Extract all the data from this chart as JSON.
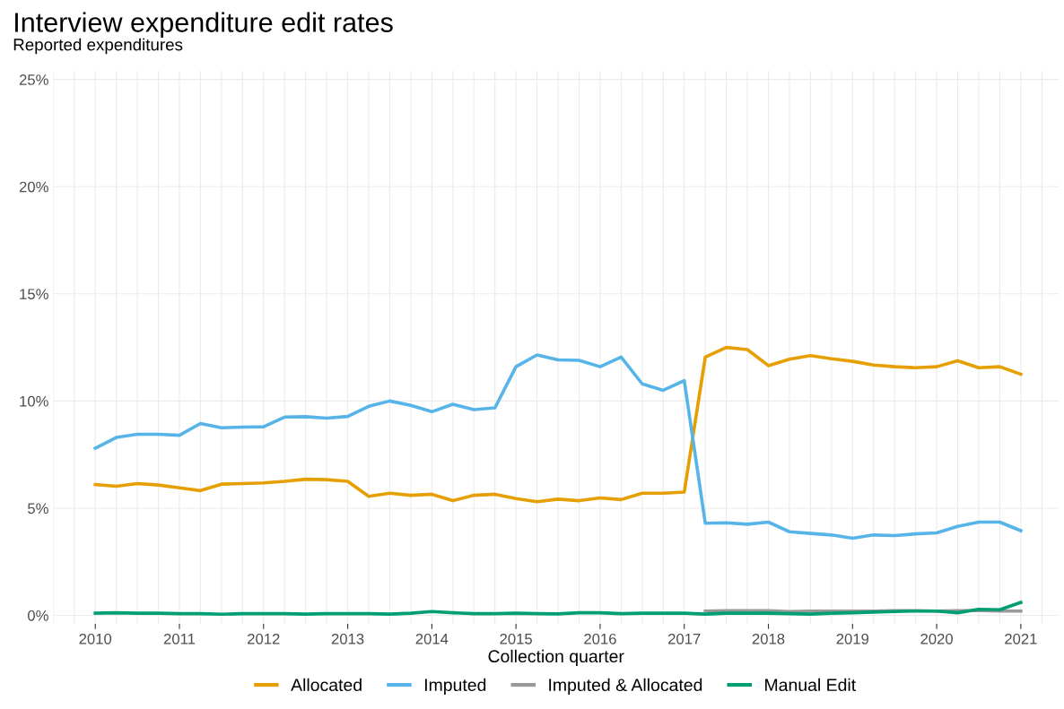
{
  "chart_data": {
    "type": "line",
    "title": "Interview expenditure edit rates",
    "subtitle": "Reported expenditures",
    "xlabel": "Collection quarter",
    "x": [
      2010,
      2010.25,
      2010.5,
      2010.75,
      2011,
      2011.25,
      2011.5,
      2011.75,
      2012,
      2012.25,
      2012.5,
      2012.75,
      2013,
      2013.25,
      2013.5,
      2013.75,
      2014,
      2014.25,
      2014.5,
      2014.75,
      2015,
      2015.25,
      2015.5,
      2015.75,
      2016,
      2016.25,
      2016.5,
      2016.75,
      2017,
      2017.25,
      2017.5,
      2017.75,
      2018,
      2018.25,
      2018.5,
      2018.75,
      2019,
      2019.25,
      2019.5,
      2019.75,
      2020,
      2020.25,
      2020.5,
      2020.75,
      2021
    ],
    "series": [
      {
        "name": "Allocated",
        "color": "#e69f00",
        "values": [
          6.1,
          6.02,
          6.15,
          6.08,
          5.95,
          5.82,
          6.12,
          6.15,
          6.18,
          6.25,
          6.35,
          6.33,
          6.25,
          5.55,
          5.7,
          5.6,
          5.65,
          5.35,
          5.6,
          5.65,
          5.45,
          5.3,
          5.42,
          5.35,
          5.48,
          5.4,
          5.7,
          5.7,
          5.75,
          12.05,
          12.5,
          12.4,
          11.65,
          11.95,
          12.12,
          11.97,
          11.85,
          11.68,
          11.6,
          11.55,
          11.6,
          11.88,
          11.55,
          11.6,
          11.25
        ]
      },
      {
        "name": "Imputed",
        "color": "#56b4e9",
        "values": [
          7.8,
          8.3,
          8.45,
          8.45,
          8.4,
          8.95,
          8.75,
          8.78,
          8.8,
          9.25,
          9.27,
          9.2,
          9.28,
          9.75,
          10.0,
          9.8,
          9.5,
          9.85,
          9.6,
          9.68,
          11.6,
          12.15,
          11.92,
          11.9,
          11.6,
          12.05,
          10.8,
          10.5,
          10.95,
          4.3,
          4.32,
          4.25,
          4.35,
          3.9,
          3.82,
          3.75,
          3.6,
          3.75,
          3.72,
          3.8,
          3.85,
          4.15,
          4.35,
          4.35,
          3.95
        ]
      },
      {
        "name": "Imputed & Allocated",
        "color": "#999999",
        "values": [
          null,
          null,
          null,
          null,
          null,
          null,
          null,
          null,
          null,
          null,
          null,
          null,
          null,
          null,
          null,
          null,
          null,
          null,
          null,
          null,
          null,
          null,
          null,
          null,
          null,
          null,
          null,
          null,
          null,
          0.2,
          0.22,
          0.22,
          0.22,
          0.18,
          0.2,
          0.2,
          0.2,
          0.2,
          0.22,
          0.22,
          0.2,
          0.22,
          0.22,
          0.2,
          0.2
        ]
      },
      {
        "name": "Manual Edit",
        "color": "#009e73",
        "values": [
          0.1,
          0.12,
          0.1,
          0.1,
          0.08,
          0.08,
          0.05,
          0.08,
          0.08,
          0.08,
          0.06,
          0.08,
          0.08,
          0.08,
          0.06,
          0.1,
          0.18,
          0.12,
          0.08,
          0.08,
          0.1,
          0.08,
          0.07,
          0.12,
          0.12,
          0.08,
          0.1,
          0.1,
          0.1,
          0.06,
          0.1,
          0.1,
          0.1,
          0.08,
          0.06,
          0.1,
          0.12,
          0.15,
          0.18,
          0.2,
          0.2,
          0.12,
          0.28,
          0.26,
          0.6
        ]
      }
    ],
    "xlim": [
      2009.5,
      2021.45
    ],
    "xticks": [
      2010,
      2011,
      2012,
      2013,
      2014,
      2015,
      2016,
      2017,
      2018,
      2019,
      2020,
      2021
    ],
    "ylim": [
      -0.4,
      25.4
    ],
    "yticks": [
      {
        "value": 0,
        "label": "0%"
      },
      {
        "value": 5,
        "label": "5%"
      },
      {
        "value": 10,
        "label": "10%"
      },
      {
        "value": 15,
        "label": "15%"
      },
      {
        "value": 20,
        "label": "20%"
      },
      {
        "value": 25,
        "label": "25%"
      }
    ],
    "grid": true,
    "legend": "bottom",
    "marker": "none",
    "line_style": "solid"
  }
}
